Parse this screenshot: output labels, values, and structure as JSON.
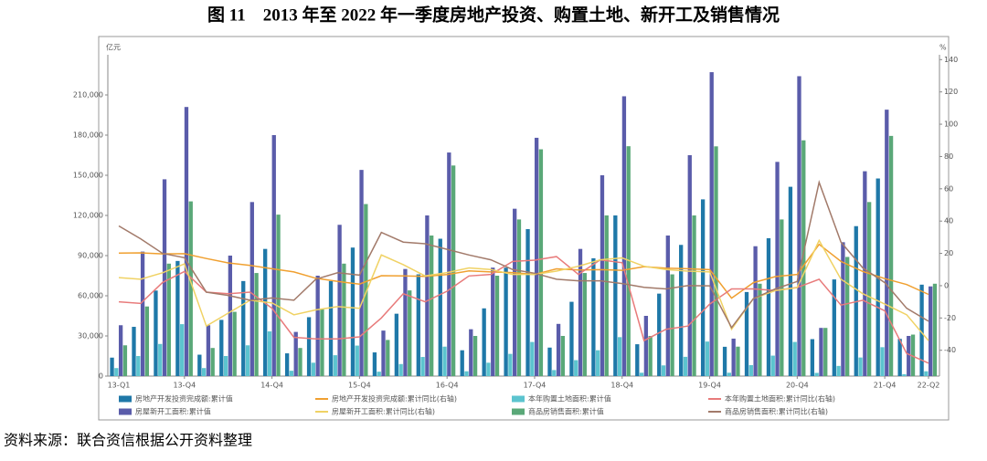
{
  "chart_data": {
    "type": "bar-line",
    "title": "图 11　2013 年至 2022 年一季度房地产投资、购置土地、新开工及销售情况",
    "source": "资料来源：联合资信根据公开资料整理",
    "y_label": "亿元",
    "y2_label": "%",
    "categories": [
      "13-Q1",
      null,
      null,
      "13-Q4",
      null,
      null,
      null,
      "14-Q4",
      null,
      null,
      null,
      "15-Q4",
      null,
      null,
      null,
      "16-Q4",
      null,
      null,
      null,
      "17-Q4",
      null,
      null,
      null,
      "18-Q4",
      null,
      null,
      null,
      "19-Q4",
      null,
      null,
      null,
      "20-Q4",
      null,
      null,
      null,
      "21-Q4",
      null,
      "22-Q2"
    ],
    "ylim": [
      0,
      240000
    ],
    "yticks": [
      0,
      {
        "value": 30000,
        "label": "30,000"
      },
      {
        "value": 60000,
        "label": "60,000"
      },
      {
        "value": 90000,
        "label": "90,000"
      },
      {
        "value": 120000,
        "label": "120,000"
      },
      {
        "value": 150000,
        "label": "150,000"
      },
      {
        "value": 180000,
        "label": "180,000"
      },
      {
        "value": 210000,
        "label": "210,000"
      }
    ],
    "y2lim": [
      -56,
      143
    ],
    "y2ticks": [
      -40,
      -20,
      0,
      20,
      40,
      60,
      80,
      100,
      120,
      140
    ],
    "series": [
      {
        "name": "房地产开发投资完成额:累计值",
        "color": "#1f78a8",
        "kind": "bar",
        "values": [
          13800,
          36800,
          63900,
          86000,
          16000,
          42000,
          71000,
          95000,
          17000,
          44000,
          71000,
          96000,
          17700,
          46600,
          76000,
          102600,
          19300,
          50600,
          81000,
          109800,
          21300,
          55500,
          88000,
          120000,
          23800,
          61600,
          98000,
          132000,
          21900,
          62800,
          103000,
          141400,
          27600,
          72200,
          112000,
          147600,
          27800,
          68300
        ]
      },
      {
        "name": "房地产开发投资完成额:累计同比(右轴)",
        "color": "#f0a030",
        "kind": "line",
        "axis": "y2",
        "values": [
          20.2,
          20.3,
          19.7,
          19.8,
          16.8,
          14.1,
          12.5,
          10.5,
          8.5,
          4.6,
          2.6,
          1.0,
          6.2,
          6.1,
          5.8,
          6.9,
          9.1,
          8.5,
          8.1,
          7.0,
          10.4,
          9.7,
          9.9,
          9.5,
          11.8,
          10.9,
          10.5,
          9.9,
          -7.7,
          1.9,
          5.6,
          7.0,
          25.6,
          15.0,
          8.8,
          4.4,
          0.7,
          -5.4
        ]
      },
      {
        "name": "本年购置土地面积:累计值",
        "color": "#5cc4cf",
        "kind": "bar",
        "values": [
          6000,
          15000,
          24000,
          38800,
          6000,
          15000,
          23000,
          33400,
          4000,
          10000,
          15600,
          22800,
          3300,
          9000,
          14300,
          22000,
          3600,
          10000,
          16600,
          25500,
          4500,
          11900,
          19300,
          29100,
          2500,
          8000,
          14400,
          25800,
          2500,
          8200,
          15300,
          25500,
          2400,
          7600,
          13900,
          21600,
          1400,
          3600
        ]
      },
      {
        "name": "本年购置土地面积:累计同比(右轴)",
        "color": "#e87b7b",
        "kind": "line",
        "axis": "y2",
        "values": [
          -10,
          -11,
          2,
          8.8,
          -4,
          -5,
          -4,
          -14,
          -32,
          -33,
          -33,
          -31.7,
          -20,
          -5,
          -10,
          -3.4,
          6,
          7,
          15,
          15.8,
          18,
          7,
          16,
          14.2,
          -34,
          -27,
          -25,
          -11.4,
          -2,
          -2,
          -3,
          -1.1,
          4,
          -12,
          -9,
          -15.5,
          -42,
          -48
        ]
      },
      {
        "name": "房屋新开工面积:累计值",
        "color": "#5a5caa",
        "kind": "bar",
        "values": [
          38000,
          93000,
          147000,
          201000,
          38000,
          90000,
          130000,
          180000,
          33000,
          75000,
          113000,
          154000,
          34000,
          80000,
          120000,
          167000,
          35000,
          81000,
          125000,
          178000,
          39000,
          95000,
          150000,
          209000,
          45000,
          105000,
          165000,
          227000,
          28000,
          97000,
          160000,
          224000,
          36000,
          100000,
          153000,
          199000,
          30000,
          67000
        ]
      },
      {
        "name": "房屋新开工面积:累计同比(右轴)",
        "color": "#f0d264",
        "kind": "line",
        "axis": "y2",
        "values": [
          5,
          4,
          8,
          13.5,
          -25,
          -17,
          -9,
          -10.7,
          -18,
          -15,
          -13,
          -14,
          19,
          13,
          6,
          8.1,
          11,
          10,
          7,
          7,
          9,
          12,
          16,
          17.2,
          12,
          10,
          9,
          8.5,
          -27,
          -8,
          -3,
          -1.2,
          28,
          4,
          -5,
          -11.4,
          -18,
          -34
        ]
      },
      {
        "name": "商品房销售面积:累计值",
        "color": "#5aa878",
        "kind": "bar",
        "values": [
          23000,
          52000,
          84000,
          130500,
          21000,
          48000,
          77000,
          120600,
          21000,
          50000,
          84000,
          128500,
          27000,
          64000,
          105000,
          157300,
          30000,
          75000,
          117000,
          169400,
          30000,
          77000,
          120000,
          171700,
          30000,
          76000,
          120000,
          171600,
          22000,
          69000,
          117000,
          176100,
          36000,
          89000,
          130000,
          179400,
          31000,
          69000
        ]
      },
      {
        "name": "商品房销售面积:累计同比(右轴)",
        "color": "#a27a6a",
        "kind": "line",
        "axis": "y2",
        "values": [
          37,
          29,
          20,
          17.3,
          -4,
          -6,
          -9,
          -7.6,
          -9,
          4,
          8,
          6.5,
          33,
          27,
          26,
          22.5,
          19,
          16,
          10,
          7.7,
          4,
          3,
          3,
          1.3,
          -1,
          -2,
          0,
          -0.1,
          -26,
          -8,
          -2,
          2.6,
          64,
          27,
          11,
          1.9,
          -14,
          -22
        ]
      }
    ]
  }
}
